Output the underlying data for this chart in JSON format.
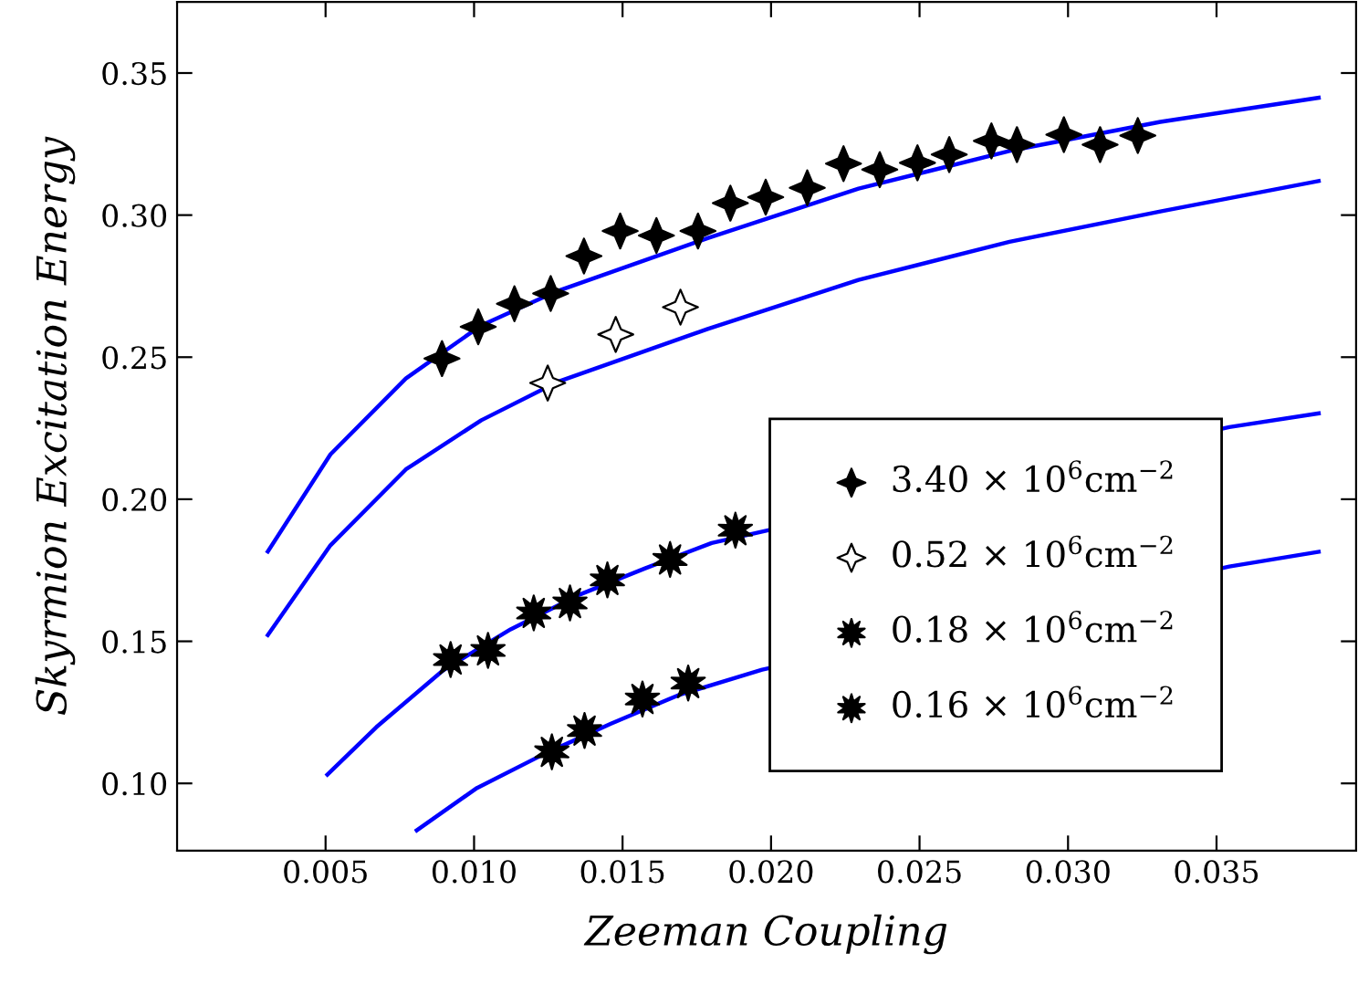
{
  "chart_data": {
    "type": "scatter",
    "xlabel": "Zeeman Coupling",
    "ylabel": "Skyrmion Excitation Energy",
    "xlim": [
      0,
      0.0397
    ],
    "ylim": [
      0.0763,
      0.375
    ],
    "xticks": [
      0.005,
      {
        "value": 0.01,
        "label": "0.010"
      },
      0.015,
      {
        "value": 0.02,
        "label": "0.020"
      },
      0.025,
      {
        "value": 0.03,
        "label": "0.030"
      },
      0.035
    ],
    "yticks": [
      {
        "value": 0.1,
        "label": "0.10"
      },
      0.15,
      {
        "value": 0.2,
        "label": "0.20"
      },
      0.25,
      {
        "value": 0.3,
        "label": "0.30"
      },
      0.35
    ],
    "legend": "right",
    "grid": false,
    "series": [
      {
        "type": "line",
        "color": "#0000ff",
        "marker": "none",
        "x": [
          0.003055,
          0.005165,
          0.007703,
          0.010244,
          0.012787,
          0.017866,
          0.022946,
          0.02803,
          0.03311,
          0.03844
        ],
        "values": [
          0.1816,
          0.2158,
          0.2425,
          0.2612,
          0.2732,
          0.2919,
          0.3093,
          0.3226,
          0.3328,
          0.3413
        ]
      },
      {
        "type": "line",
        "color": "#0000ff",
        "marker": "none",
        "x": [
          0.003055,
          0.005165,
          0.007703,
          0.010244,
          0.012787,
          0.017866,
          0.022946,
          0.02803,
          0.03311,
          0.03844
        ],
        "values": [
          0.1522,
          0.1838,
          0.2105,
          0.2278,
          0.2412,
          0.2599,
          0.2772,
          0.2906,
          0.3013,
          0.312
        ]
      },
      {
        "type": "line",
        "color": "#0000ff",
        "marker": "none",
        "x": [
          0.00506,
          0.00671,
          0.00897,
          0.01123,
          0.01348,
          0.01574,
          0.018,
          0.0197,
          0.03543,
          0.03844
        ],
        "values": [
          0.1031,
          0.1198,
          0.1399,
          0.1542,
          0.1661,
          0.1756,
          0.1846,
          0.1886,
          0.2254,
          0.2302
        ]
      },
      {
        "type": "line",
        "color": "#0000ff",
        "marker": "none",
        "x": [
          0.00807,
          0.0101,
          0.01235,
          0.01461,
          0.01687,
          0.0197,
          0.03543,
          0.03844
        ],
        "values": [
          0.0835,
          0.0984,
          0.1103,
          0.121,
          0.131,
          0.14,
          0.1763,
          0.1815
        ]
      },
      {
        "name": "3.40 × 10$^{6}$cm$^{−2}$",
        "color": "#000000",
        "marker": "diamond",
        "x": [
          0.00892,
          0.01014,
          0.01136,
          0.01258,
          0.0137,
          0.01492,
          0.01614,
          0.01754,
          0.01863,
          0.01982,
          0.02122,
          0.02244,
          0.02366,
          0.02493,
          0.026,
          0.02742,
          0.02828,
          0.02986,
          0.03108,
          0.03235
        ],
        "values": [
          0.2495,
          0.2607,
          0.2688,
          0.2724,
          0.2856,
          0.2944,
          0.2928,
          0.2944,
          0.3042,
          0.3063,
          0.3096,
          0.3181,
          0.316,
          0.3184,
          0.3213,
          0.3261,
          0.3248,
          0.3283,
          0.3248,
          0.328
        ]
      },
      {
        "name": "0.52 × 10$^{6}$cm$^{−2}$",
        "color": "#ffffff",
        "marker": "diamond",
        "x": [
          0.01248,
          0.01477,
          0.01695
        ],
        "values": [
          0.2409,
          0.258,
          0.2676
        ]
      },
      {
        "name": "0.18 × 10$^{6}$cm$^{−2}$",
        "color": "#000000",
        "marker": "star",
        "x": [
          0.00921,
          0.01047,
          0.01201,
          0.01323,
          0.01449,
          0.0166,
          0.0188
        ],
        "values": [
          0.1436,
          0.1468,
          0.16,
          0.1635,
          0.1716,
          0.1788,
          0.1891
        ]
      },
      {
        "name": "0.16 × 10$^{6}$cm$^{−2}$",
        "color": "#000000",
        "marker": "star",
        "x": [
          0.01262,
          0.01372,
          0.01567,
          0.01721
        ],
        "values": [
          0.1111,
          0.1186,
          0.1297,
          0.1353
        ]
      }
    ]
  }
}
